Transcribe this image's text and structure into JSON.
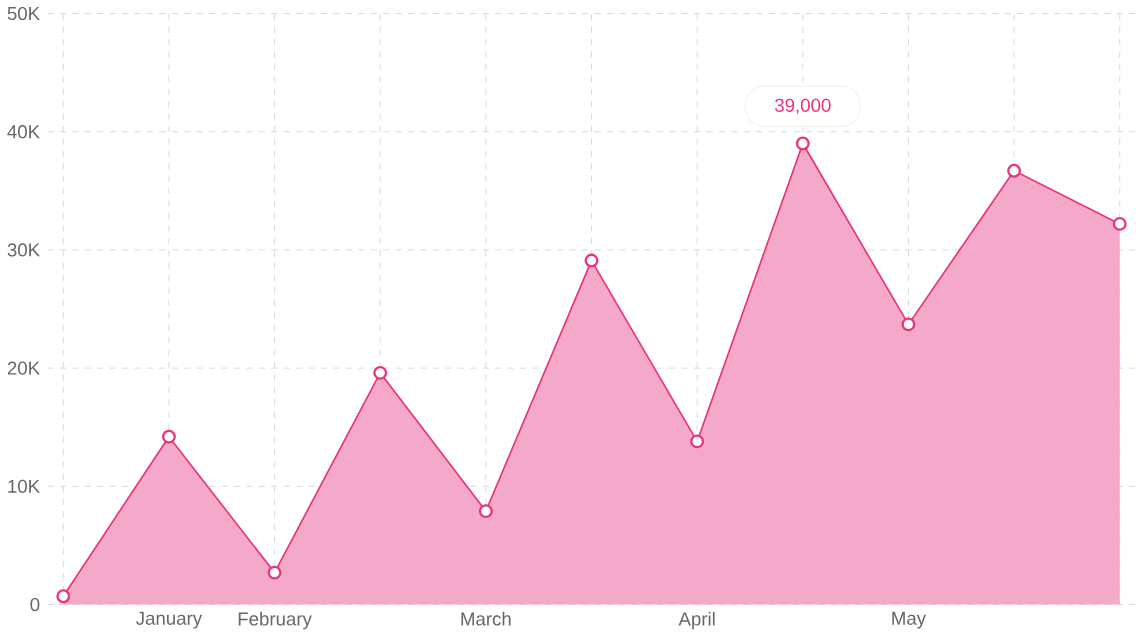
{
  "chart_data": {
    "type": "area",
    "categories": [
      null,
      "January",
      "February",
      null,
      "March",
      null,
      "April",
      null,
      "May",
      null,
      null
    ],
    "series": [
      {
        "color": "#e8337f",
        "values": [
          700,
          14200,
          2700,
          19600,
          7900,
          29100,
          13800,
          39000,
          23700,
          36700,
          32200
        ]
      }
    ],
    "ylim": [
      0,
      50000
    ],
    "yticks": [
      {
        "value": 0,
        "label": "0"
      },
      {
        "value": 10000,
        "label": "10K"
      },
      {
        "value": 20000,
        "label": "20K"
      },
      {
        "value": 30000,
        "label": "30K"
      },
      {
        "value": 40000,
        "label": "40K"
      },
      {
        "value": 50000,
        "label": "50K"
      }
    ],
    "annotations": [
      {
        "text": "39,000",
        "y": 39000
      }
    ],
    "grid": true,
    "marker": "circle",
    "line_style": "solid"
  }
}
